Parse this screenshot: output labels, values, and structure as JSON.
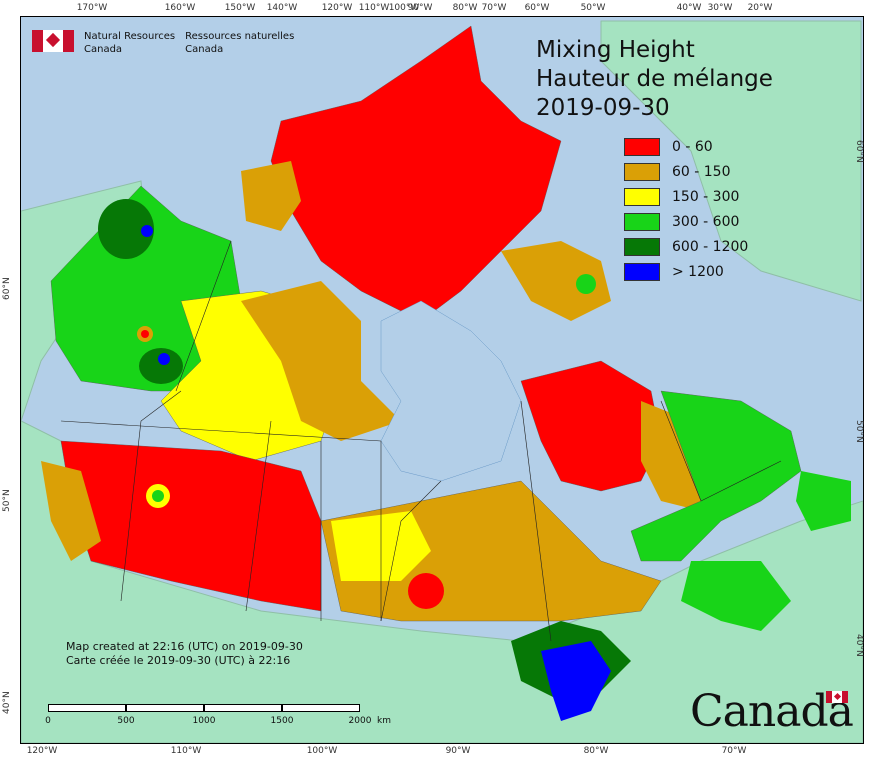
{
  "map": {
    "title_en": "Mixing Height",
    "title_fr": "Hauteur de mélange",
    "date": "2019-09-30",
    "agency_en_line1": "Natural Resources",
    "agency_en_line2": "Canada",
    "agency_fr_line1": "Ressources naturelles",
    "agency_fr_line2": "Canada",
    "created_en": "Map created at 22:16 (UTC) on 2019-09-30",
    "created_fr": "Carte créée le 2019-09-30 (UTC) à 22:16",
    "wordmark": "Canada",
    "legend": [
      {
        "label": "0 - 60",
        "color": "#ff0000"
      },
      {
        "label": "60 - 150",
        "color": "#daa006"
      },
      {
        "label": "150 - 300",
        "color": "#ffff00"
      },
      {
        "label": "300 - 600",
        "color": "#18d418"
      },
      {
        "label": "600 - 1200",
        "color": "#067806"
      },
      {
        "label": "> 1200",
        "color": "#0000ff"
      }
    ],
    "colors": {
      "ocean": "#b3cfe8",
      "foreign_land": "#a5e3c1"
    },
    "scale_bar": {
      "labels": [
        "0",
        "500",
        "1000",
        "1500",
        "2000"
      ],
      "unit": "km"
    },
    "top_ticks": [
      "170°W",
      "160°W",
      "150°W",
      "140°W",
      "120°W",
      "110°W",
      "100°W",
      "90°W",
      "80°W",
      "70°W",
      "60°W",
      "50°W",
      "40°W",
      "30°W",
      "20°W"
    ],
    "bottom_ticks": [
      "120°W",
      "110°W",
      "100°W",
      "90°W",
      "80°W",
      "70°W"
    ],
    "left_ticks": [
      "60°N",
      "50°N",
      "40°N"
    ],
    "right_ticks": [
      "60°N",
      "50°N",
      "40°N"
    ]
  }
}
